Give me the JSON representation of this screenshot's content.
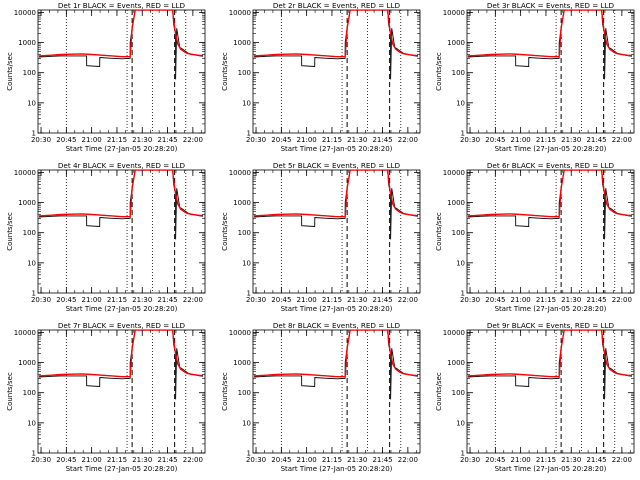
{
  "page": {
    "background": "#ffffff"
  },
  "colors": {
    "events": "#000000",
    "lld": "#ff0000",
    "axes": "#000000"
  },
  "chart_data": [
    {
      "type": "line",
      "title": "Det 1r BLACK = Events, RED = LLD",
      "xlabel": "Start Time (27-Jan-05 20:28:20)",
      "ylabel": "Counts/sec",
      "ylog": true,
      "ylim": [
        1,
        12000
      ],
      "yticks": [
        "1",
        "10",
        "100",
        "1000",
        "10000"
      ],
      "xlim": [
        20.47,
        22.12
      ],
      "xticks": [
        "20:30",
        "20:45",
        "21:00",
        "21:15",
        "21:30",
        "21:45",
        "22:00"
      ],
      "grid": false
    },
    {
      "type": "line",
      "title": "Det 2r BLACK = Events, RED = LLD",
      "xlabel": "Start Time (27-Jan-05 20:28:20)",
      "ylabel": "Counts/sec",
      "ylog": true,
      "ylim": [
        1,
        12000
      ],
      "yticks": [
        "1",
        "10",
        "100",
        "1000",
        "10000"
      ],
      "xlim": [
        20.47,
        22.12
      ],
      "xticks": [
        "20:30",
        "20:45",
        "21:00",
        "21:15",
        "21:30",
        "21:45",
        "22:00"
      ],
      "grid": false
    },
    {
      "type": "line",
      "title": "Det 3r BLACK = Events, RED = LLD",
      "xlabel": "Start Time (27-Jan-05 20:28:20)",
      "ylabel": "Counts/sec",
      "ylog": true,
      "ylim": [
        1,
        12000
      ],
      "yticks": [
        "1",
        "10",
        "100",
        "1000",
        "10000"
      ],
      "xlim": [
        20.47,
        22.12
      ],
      "xticks": [
        "20:30",
        "20:45",
        "21:00",
        "21:15",
        "21:30",
        "21:45",
        "22:00"
      ],
      "grid": false
    },
    {
      "type": "line",
      "title": "Det 4r BLACK = Events, RED = LLD",
      "xlabel": "Start Time (27-Jan-05 20:28:20)",
      "ylabel": "Counts/sec",
      "ylog": true,
      "ylim": [
        1,
        12000
      ],
      "yticks": [
        "1",
        "10",
        "100",
        "1000",
        "10000"
      ],
      "xlim": [
        20.47,
        22.12
      ],
      "xticks": [
        "20:30",
        "20:45",
        "21:00",
        "21:15",
        "21:30",
        "21:45",
        "22:00"
      ],
      "grid": false
    },
    {
      "type": "line",
      "title": "Det 5r BLACK = Events, RED = LLD",
      "xlabel": "Start Time (27-Jan-05 20:28:20)",
      "ylabel": "Counts/sec",
      "ylog": true,
      "ylim": [
        1,
        12000
      ],
      "yticks": [
        "1",
        "10",
        "100",
        "1000",
        "10000"
      ],
      "xlim": [
        20.47,
        22.12
      ],
      "xticks": [
        "20:30",
        "20:45",
        "21:00",
        "21:15",
        "21:30",
        "21:45",
        "22:00"
      ],
      "grid": false
    },
    {
      "type": "line",
      "title": "Det 6r BLACK = Events, RED = LLD",
      "xlabel": "Start Time (27-Jan-05 20:28:20)",
      "ylabel": "Counts/sec",
      "ylog": true,
      "ylim": [
        1,
        12000
      ],
      "yticks": [
        "1",
        "10",
        "100",
        "1000",
        "10000"
      ],
      "xlim": [
        20.47,
        22.12
      ],
      "xticks": [
        "20:30",
        "20:45",
        "21:00",
        "21:15",
        "21:30",
        "21:45",
        "22:00"
      ],
      "grid": false
    },
    {
      "type": "line",
      "title": "Det 7r BLACK = Events, RED = LLD",
      "xlabel": "Start Time (27-Jan-05 20:28:20)",
      "ylabel": "Counts/sec",
      "ylog": true,
      "ylim": [
        1,
        12000
      ],
      "yticks": [
        "1",
        "10",
        "100",
        "1000",
        "10000"
      ],
      "xlim": [
        20.47,
        22.12
      ],
      "xticks": [
        "20:30",
        "20:45",
        "21:00",
        "21:15",
        "21:30",
        "21:45",
        "22:00"
      ],
      "grid": false
    },
    {
      "type": "line",
      "title": "Det 8r BLACK = Events, RED = LLD",
      "xlabel": "Start Time (27-Jan-05 20:28:20)",
      "ylabel": "Counts/sec",
      "ylog": true,
      "ylim": [
        1,
        12000
      ],
      "yticks": [
        "1",
        "10",
        "100",
        "1000",
        "10000"
      ],
      "xlim": [
        20.47,
        22.12
      ],
      "xticks": [
        "20:30",
        "20:45",
        "21:00",
        "21:15",
        "21:30",
        "21:45",
        "22:00"
      ],
      "grid": false
    },
    {
      "type": "line",
      "title": "Det 9r BLACK = Events, RED = LLD",
      "xlabel": "Start Time (27-Jan-05 20:28:20)",
      "ylabel": "Counts/sec",
      "ylog": true,
      "ylim": [
        1,
        12000
      ],
      "yticks": [
        "1",
        "10",
        "100",
        "1000",
        "10000"
      ],
      "xlim": [
        20.47,
        22.12
      ],
      "xticks": [
        "20:30",
        "20:45",
        "21:00",
        "21:15",
        "21:30",
        "21:45",
        "22:00"
      ],
      "grid": false
    }
  ],
  "shared_series": {
    "events": {
      "x": [
        20.48,
        20.6,
        20.7,
        20.8,
        20.9,
        20.95,
        20.951,
        21.08,
        21.081,
        21.2,
        21.3,
        21.38,
        21.381,
        21.4,
        21.4,
        21.43,
        21.43,
        21.8,
        21.81,
        21.83,
        21.83,
        21.84,
        21.87,
        21.9,
        21.95,
        22.0,
        22.05,
        22.1
      ],
      "y": [
        330,
        350,
        360,
        360,
        360,
        360,
        170,
        160,
        320,
        300,
        290,
        300,
        1000,
        3000,
        3000,
        12000,
        12000,
        12000,
        4000,
        2000,
        60,
        3000,
        700,
        600,
        450,
        400,
        370,
        350
      ]
    },
    "lld": {
      "x": [
        20.48,
        20.6,
        20.7,
        20.8,
        20.9,
        21.0,
        21.1,
        21.2,
        21.3,
        21.38,
        21.4,
        21.43,
        21.8,
        21.82,
        21.85,
        21.88,
        21.92,
        21.95,
        22.0,
        22.05,
        22.1
      ],
      "y": [
        360,
        380,
        400,
        410,
        420,
        400,
        380,
        360,
        340,
        340,
        3000,
        12000,
        12000,
        3000,
        900,
        600,
        480,
        430,
        400,
        380,
        370
      ]
    },
    "dotted_lines_x": [
      20.75,
      21.35,
      21.6,
      21.93
    ],
    "dashed_lines_x": [
      21.4,
      21.82
    ]
  }
}
